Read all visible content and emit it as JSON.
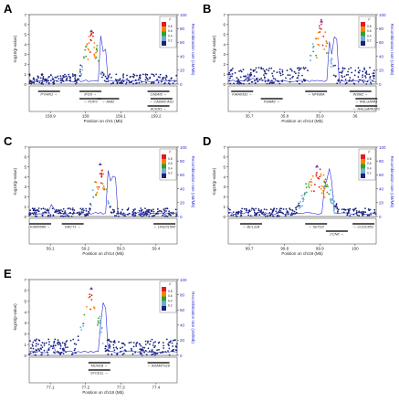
{
  "figure": {
    "panels": [
      {
        "letter": "A",
        "chromosome_label": "Position on chr1 (Mb)",
        "xticks": [
          "158.9",
          "159",
          "159.1",
          "159.2"
        ],
        "genes": [
          {
            "name": "PYHIN1",
            "dir": "right",
            "row": 0,
            "x": 0.06
          },
          {
            "name": "IFI16",
            "dir": "right",
            "row": 0,
            "x": 0.34
          },
          {
            "name": "CADM3",
            "dir": "right",
            "row": 0,
            "x": 0.8
          },
          {
            "name": "POP3",
            "dir": "left",
            "row": 1,
            "x": 0.34
          },
          {
            "name": "AIM2",
            "dir": "left",
            "row": 1,
            "x": 0.46
          },
          {
            "name": "CADM3-AS1",
            "dir": "left",
            "row": 1,
            "x": 0.82
          },
          {
            "name": "ACKR1",
            "dir": "right",
            "row": 2,
            "x": 0.8
          }
        ]
      },
      {
        "letter": "B",
        "chromosome_label": "Position on chr14 (Mb)",
        "xticks": [
          "35.7",
          "35.8",
          "35.9",
          "36"
        ],
        "genes": [
          {
            "name": "KIAA0391",
            "dir": "right",
            "row": 0,
            "x": 0.02
          },
          {
            "name": "NFKBIA",
            "dir": "left",
            "row": 0,
            "x": 0.52
          },
          {
            "name": "INSM2",
            "dir": "right",
            "row": 0,
            "x": 0.82
          },
          {
            "name": "PSMA6",
            "dir": "right",
            "row": 1,
            "x": 0.22
          },
          {
            "name": "RALGAPA1",
            "dir": "left",
            "row": 1,
            "x": 0.86
          },
          {
            "name": "RALGAPA1P1",
            "dir": "left",
            "row": 2,
            "x": 0.86
          }
        ]
      },
      {
        "letter": "C",
        "chromosome_label": "Position on chr14 (Mb)",
        "xticks": [
          "59.1",
          "59.2",
          "59.3",
          "59.4"
        ],
        "genes": [
          {
            "name": "KIAA0586",
            "dir": "right",
            "row": 0,
            "x": 0.0
          },
          {
            "name": "DACT1",
            "dir": "right",
            "row": 0,
            "x": 0.22
          },
          {
            "name": "LINC01500",
            "dir": "left",
            "row": 0,
            "x": 0.84
          }
        ]
      },
      {
        "letter": "D",
        "chromosome_label": "Position on chr19 (Mb)",
        "xticks": [
          "99.7",
          "99.8",
          "99.9",
          "100"
        ],
        "genes": [
          {
            "name": "BCL11B",
            "dir": "left",
            "row": 0,
            "x": 0.08
          },
          {
            "name": "SETD3",
            "dir": "left",
            "row": 0,
            "x": 0.52
          },
          {
            "name": "CCNK",
            "dir": "right",
            "row": 1,
            "x": 0.66
          },
          {
            "name": "CCDC85C",
            "dir": "left",
            "row": 0,
            "x": 0.84
          }
        ]
      },
      {
        "letter": "E",
        "chromosome_label": "Position on chr16 (Mb)",
        "xticks": [
          "77.1",
          "77.2",
          "77.3",
          "77.4"
        ],
        "genes": [
          {
            "name": "MON1B",
            "dir": "right",
            "row": 0,
            "x": 0.4
          },
          {
            "name": "ADAMTS18",
            "dir": "left",
            "row": 0,
            "x": 0.8
          },
          {
            "name": "SYCE1L",
            "dir": "right",
            "row": 1,
            "x": 0.4
          }
        ]
      }
    ],
    "ylabel": "-log10(p-value)",
    "ylabel_right": "Recombination rate (cM/Mb)",
    "yticks_left": [
      "0",
      "1",
      "2",
      "3",
      "4",
      "5",
      "6",
      "7"
    ],
    "yticks_right": [
      "0",
      "20",
      "40",
      "60",
      "80",
      "100"
    ],
    "legend_title": "r²",
    "legend_values": [
      "0.8",
      "0.6",
      "0.4",
      "0.2"
    ],
    "colors": {
      "r2_08": "#e41a1c",
      "r2_06": "#ff7f00",
      "r2_04": "#33a02c",
      "r2_02": "#6baed6",
      "r2_00": "#1a237e",
      "recomb": "#2b2bd9",
      "lead": "#7b2fa8"
    }
  }
}
